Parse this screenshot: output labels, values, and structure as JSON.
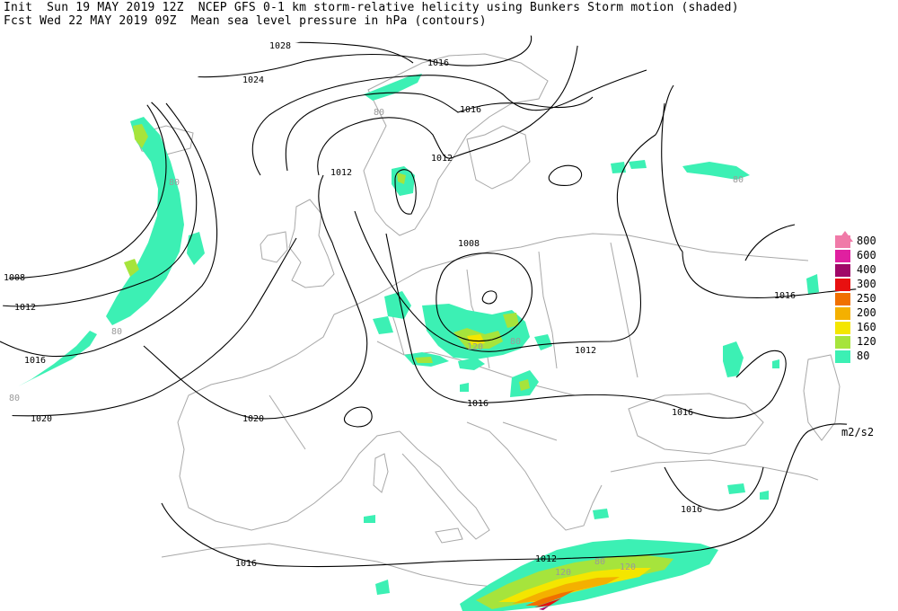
{
  "header": {
    "line1": "Init  Sun 19 MAY 2019 12Z  NCEP GFS 0-1 km storm-relative helicity using Bunkers Storm motion (shaded)",
    "line2": "Fcst Wed 22 MAY 2019 09Z  Mean sea level pressure in hPa (contours)"
  },
  "isobar_labels": [
    "1028",
    "1024",
    "1020",
    "1020",
    "1016",
    "1016",
    "1016",
    "1016",
    "1016",
    "1016",
    "1016",
    "1016",
    "1012",
    "1012",
    "1012",
    "1012",
    "1012",
    "1008",
    "1008"
  ],
  "helicity_labels": [
    "80",
    "80",
    "80",
    "80",
    "80",
    "80",
    "120",
    "120",
    "80",
    "120"
  ],
  "legend": {
    "items": [
      {
        "label": "800",
        "color": "#f07aa8"
      },
      {
        "label": "600",
        "color": "#e020a0"
      },
      {
        "label": "400",
        "color": "#a00868"
      },
      {
        "label": "300",
        "color": "#e81010"
      },
      {
        "label": "250",
        "color": "#f07000"
      },
      {
        "label": "200",
        "color": "#f4b000"
      },
      {
        "label": "160",
        "color": "#f4e600"
      },
      {
        "label": "120",
        "color": "#a6e43c"
      },
      {
        "label": "80",
        "color": "#3cf0b4"
      }
    ],
    "units": "m2/s2"
  }
}
